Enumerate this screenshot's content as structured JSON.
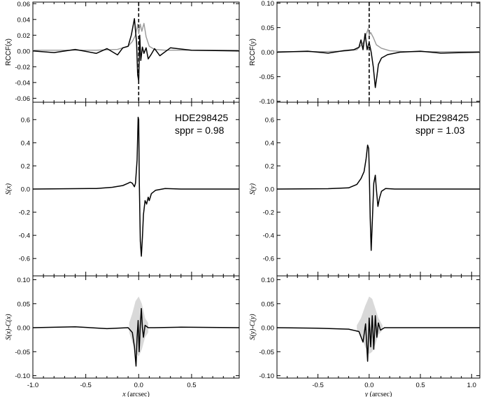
{
  "chart_data": [
    {
      "type": "line",
      "panel": "left-top",
      "ylabel_prefix": "RCCF(",
      "ylabel_var": "x",
      "ylabel_suffix": ")",
      "xlim": [
        -1.0,
        0.95
      ],
      "ylim": [
        -0.065,
        0.062
      ],
      "yticks": [
        "0.06",
        "0.04",
        "0.02",
        "0.00",
        "-0.02",
        "-0.04",
        "-0.06"
      ],
      "ytick_values": [
        0.06,
        0.04,
        0.02,
        0.0,
        -0.02,
        -0.04,
        -0.06
      ],
      "vline_x": 0.0,
      "series": [
        {
          "color": "#999999",
          "x": [
            -1.0,
            -0.4,
            -0.2,
            -0.1,
            -0.06,
            -0.03,
            -0.01,
            0.0,
            0.015,
            0.03,
            0.05,
            0.07,
            0.1,
            0.15,
            0.25,
            0.95
          ],
          "y": [
            0.001,
            0.001,
            0.002,
            0.006,
            0.012,
            0.02,
            0.034,
            0.022,
            0.034,
            0.025,
            0.035,
            0.018,
            0.006,
            0.002,
            0.001,
            0.001
          ]
        },
        {
          "color": "#000000",
          "x": [
            -1.0,
            -0.8,
            -0.6,
            -0.4,
            -0.3,
            -0.2,
            -0.15,
            -0.1,
            -0.07,
            -0.04,
            -0.02,
            -0.01,
            0.0,
            0.01,
            0.02,
            0.035,
            0.05,
            0.07,
            0.09,
            0.12,
            0.15,
            0.2,
            0.3,
            0.5,
            0.95
          ],
          "y": [
            0.0,
            -0.002,
            0.002,
            -0.003,
            0.003,
            -0.005,
            0.004,
            0.006,
            0.02,
            0.041,
            0.01,
            -0.03,
            -0.038,
            0.02,
            -0.012,
            0.005,
            -0.003,
            0.004,
            -0.01,
            -0.004,
            0.003,
            -0.006,
            0.004,
            0.001,
            0.0
          ]
        }
      ]
    },
    {
      "type": "line",
      "panel": "left-mid",
      "ylabel_prefix": "S(",
      "ylabel_var": "x",
      "ylabel_suffix": ")",
      "xlim": [
        -1.0,
        0.95
      ],
      "ylim": [
        -0.75,
        0.75
      ],
      "yticks": [
        "0.6",
        "0.4",
        "0.2",
        "0.0",
        "-0.2",
        "-0.4",
        "-0.6"
      ],
      "ytick_values": [
        0.6,
        0.4,
        0.2,
        0.0,
        -0.2,
        -0.4,
        -0.6
      ],
      "annotation_name": "HDE298425",
      "annotation_value": "sppr = 0.98",
      "series": [
        {
          "color": "#000000",
          "x": [
            -1.0,
            -0.4,
            -0.25,
            -0.15,
            -0.1,
            -0.08,
            -0.06,
            -0.04,
            -0.03,
            -0.015,
            -0.005,
            0.0,
            0.006,
            0.015,
            0.025,
            0.035,
            0.045,
            0.06,
            0.075,
            0.09,
            0.1,
            0.12,
            0.16,
            0.25,
            0.4,
            0.95
          ],
          "y": [
            0.0,
            0.005,
            0.015,
            0.03,
            0.05,
            0.06,
            0.05,
            0.02,
            0.05,
            0.25,
            0.62,
            0.6,
            0.05,
            -0.45,
            -0.58,
            -0.42,
            -0.22,
            -0.1,
            -0.13,
            -0.07,
            -0.1,
            -0.04,
            -0.01,
            0.005,
            0.0,
            0.0
          ]
        }
      ]
    },
    {
      "type": "line",
      "panel": "left-bot",
      "ylabel_prefix": "S(",
      "ylabel_var": "x",
      "ylabel_suffix": ")-C(",
      "ylabel_var2": "x",
      "ylabel_suffix2": ")",
      "xlim": [
        -1.0,
        0.95
      ],
      "ylim": [
        -0.105,
        0.108
      ],
      "yticks": [
        "0.10",
        "0.05",
        "0.00",
        "-0.05",
        "-0.10"
      ],
      "ytick_values": [
        0.1,
        0.05,
        0.0,
        -0.05,
        -0.1
      ],
      "xticks": [
        "-1.0",
        "-0.5",
        "0.0",
        "0.5"
      ],
      "xtick_values": [
        -1.0,
        -0.5,
        0.0,
        0.5
      ],
      "xlabel_var": "x",
      "xlabel_unit": " (arcsec)",
      "band": {
        "x": [
          -0.09,
          -0.06,
          -0.03,
          0.0,
          0.03,
          0.06,
          0.09
        ],
        "upper": [
          0.01,
          0.03,
          0.055,
          0.065,
          0.05,
          0.02,
          0.01
        ],
        "lower": [
          -0.01,
          -0.03,
          -0.05,
          -0.06,
          -0.045,
          -0.02,
          -0.01
        ]
      },
      "series": [
        {
          "color": "#000000",
          "x": [
            -1.0,
            -0.6,
            -0.3,
            -0.1,
            -0.06,
            -0.04,
            -0.025,
            -0.015,
            -0.005,
            0.005,
            0.015,
            0.025,
            0.035,
            0.045,
            0.06,
            0.09,
            0.15,
            0.4,
            0.95
          ],
          "y": [
            0.0,
            0.002,
            -0.002,
            0.0,
            -0.01,
            -0.04,
            -0.08,
            -0.02,
            0.015,
            -0.05,
            0.005,
            0.04,
            0.0,
            -0.02,
            0.005,
            0.0,
            0.0,
            0.001,
            0.0
          ]
        }
      ]
    },
    {
      "type": "line",
      "panel": "right-top",
      "ylabel_prefix": "RCCF(",
      "ylabel_var": "y",
      "ylabel_suffix": ")",
      "xlim": [
        -0.9,
        1.08
      ],
      "ylim": [
        -0.102,
        0.102
      ],
      "yticks": [
        "0.10",
        "0.05",
        "0.00",
        "-0.05",
        "-0.10"
      ],
      "ytick_values": [
        0.1,
        0.05,
        0.0,
        -0.05,
        -0.1
      ],
      "vline_x": 0.0,
      "series": [
        {
          "color": "#999999",
          "x": [
            -0.9,
            -0.5,
            -0.25,
            -0.12,
            -0.06,
            -0.03,
            -0.01,
            0.0,
            0.015,
            0.04,
            0.07,
            0.12,
            0.2,
            0.35,
            1.08
          ],
          "y": [
            0.001,
            0.001,
            0.002,
            0.005,
            0.018,
            0.035,
            0.048,
            0.035,
            0.04,
            0.03,
            0.015,
            0.008,
            0.003,
            0.001,
            0.001
          ]
        },
        {
          "color": "#000000",
          "x": [
            -0.9,
            -0.6,
            -0.4,
            -0.25,
            -0.15,
            -0.1,
            -0.08,
            -0.06,
            -0.04,
            -0.02,
            0.0,
            0.02,
            0.04,
            0.06,
            0.075,
            0.09,
            0.12,
            0.18,
            0.3,
            0.5,
            0.7,
            1.08
          ],
          "y": [
            0.0,
            0.002,
            -0.002,
            0.003,
            0.005,
            0.01,
            0.025,
            0.005,
            0.038,
            0.005,
            0.02,
            0.0,
            -0.03,
            -0.072,
            -0.05,
            -0.025,
            -0.012,
            -0.005,
            0.0,
            0.002,
            -0.002,
            0.0
          ]
        }
      ]
    },
    {
      "type": "line",
      "panel": "right-mid",
      "ylabel_prefix": "S(",
      "ylabel_var": "y",
      "ylabel_suffix": ")",
      "xlim": [
        -0.9,
        1.08
      ],
      "ylim": [
        -0.75,
        0.75
      ],
      "yticks": [
        "0.6",
        "0.4",
        "0.2",
        "0.0",
        "-0.2",
        "-0.4",
        "-0.6"
      ],
      "ytick_values": [
        0.6,
        0.4,
        0.2,
        0.0,
        -0.2,
        -0.4,
        -0.6
      ],
      "annotation_name": "HDE298425",
      "annotation_value": "sppr = 1.03",
      "series": [
        {
          "color": "#000000",
          "x": [
            -0.9,
            -0.4,
            -0.2,
            -0.12,
            -0.08,
            -0.05,
            -0.03,
            -0.015,
            -0.005,
            0.0,
            0.01,
            0.02,
            0.03,
            0.045,
            0.06,
            0.07,
            0.085,
            0.1,
            0.12,
            0.16,
            0.25,
            0.5,
            1.08
          ],
          "y": [
            0.0,
            0.003,
            0.01,
            0.04,
            0.09,
            0.15,
            0.26,
            0.38,
            0.35,
            0.2,
            -0.25,
            -0.53,
            -0.3,
            0.05,
            0.12,
            0.0,
            -0.15,
            -0.08,
            -0.02,
            0.005,
            0.0,
            0.0,
            0.0
          ]
        }
      ]
    },
    {
      "type": "line",
      "panel": "right-bot",
      "ylabel_prefix": "S(",
      "ylabel_var": "y",
      "ylabel_suffix": ")-C(",
      "ylabel_var2": "y",
      "ylabel_suffix2": ")",
      "xlim": [
        -0.9,
        1.08
      ],
      "ylim": [
        -0.105,
        0.108
      ],
      "yticks": [
        "0.10",
        "0.05",
        "0.00",
        "-0.05",
        "-0.10"
      ],
      "ytick_values": [
        0.1,
        0.05,
        0.0,
        -0.05,
        -0.1
      ],
      "xticks": [
        "-0.5",
        "0.0",
        "0.5",
        "1.0"
      ],
      "xtick_values": [
        -0.5,
        0.0,
        0.5,
        1.0
      ],
      "xlabel_var": "y",
      "xlabel_unit": " (arcsec)",
      "band": {
        "x": [
          -0.12,
          -0.08,
          -0.04,
          0.0,
          0.03,
          0.06,
          0.09,
          0.13
        ],
        "upper": [
          0.005,
          0.02,
          0.045,
          0.065,
          0.06,
          0.04,
          0.02,
          0.005
        ],
        "lower": [
          -0.005,
          -0.015,
          -0.04,
          -0.055,
          -0.05,
          -0.035,
          -0.015,
          -0.005
        ]
      },
      "series": [
        {
          "color": "#000000",
          "x": [
            -0.9,
            -0.5,
            -0.2,
            -0.1,
            -0.06,
            -0.035,
            -0.015,
            0.0,
            0.015,
            0.03,
            0.045,
            0.06,
            0.075,
            0.09,
            0.11,
            0.15,
            0.3,
            0.6,
            1.08
          ],
          "y": [
            0.0,
            -0.001,
            -0.003,
            -0.008,
            -0.03,
            0.008,
            -0.07,
            0.02,
            -0.04,
            0.025,
            -0.045,
            0.025,
            -0.02,
            0.01,
            -0.005,
            0.0,
            0.0,
            0.0,
            0.0
          ]
        }
      ]
    }
  ]
}
